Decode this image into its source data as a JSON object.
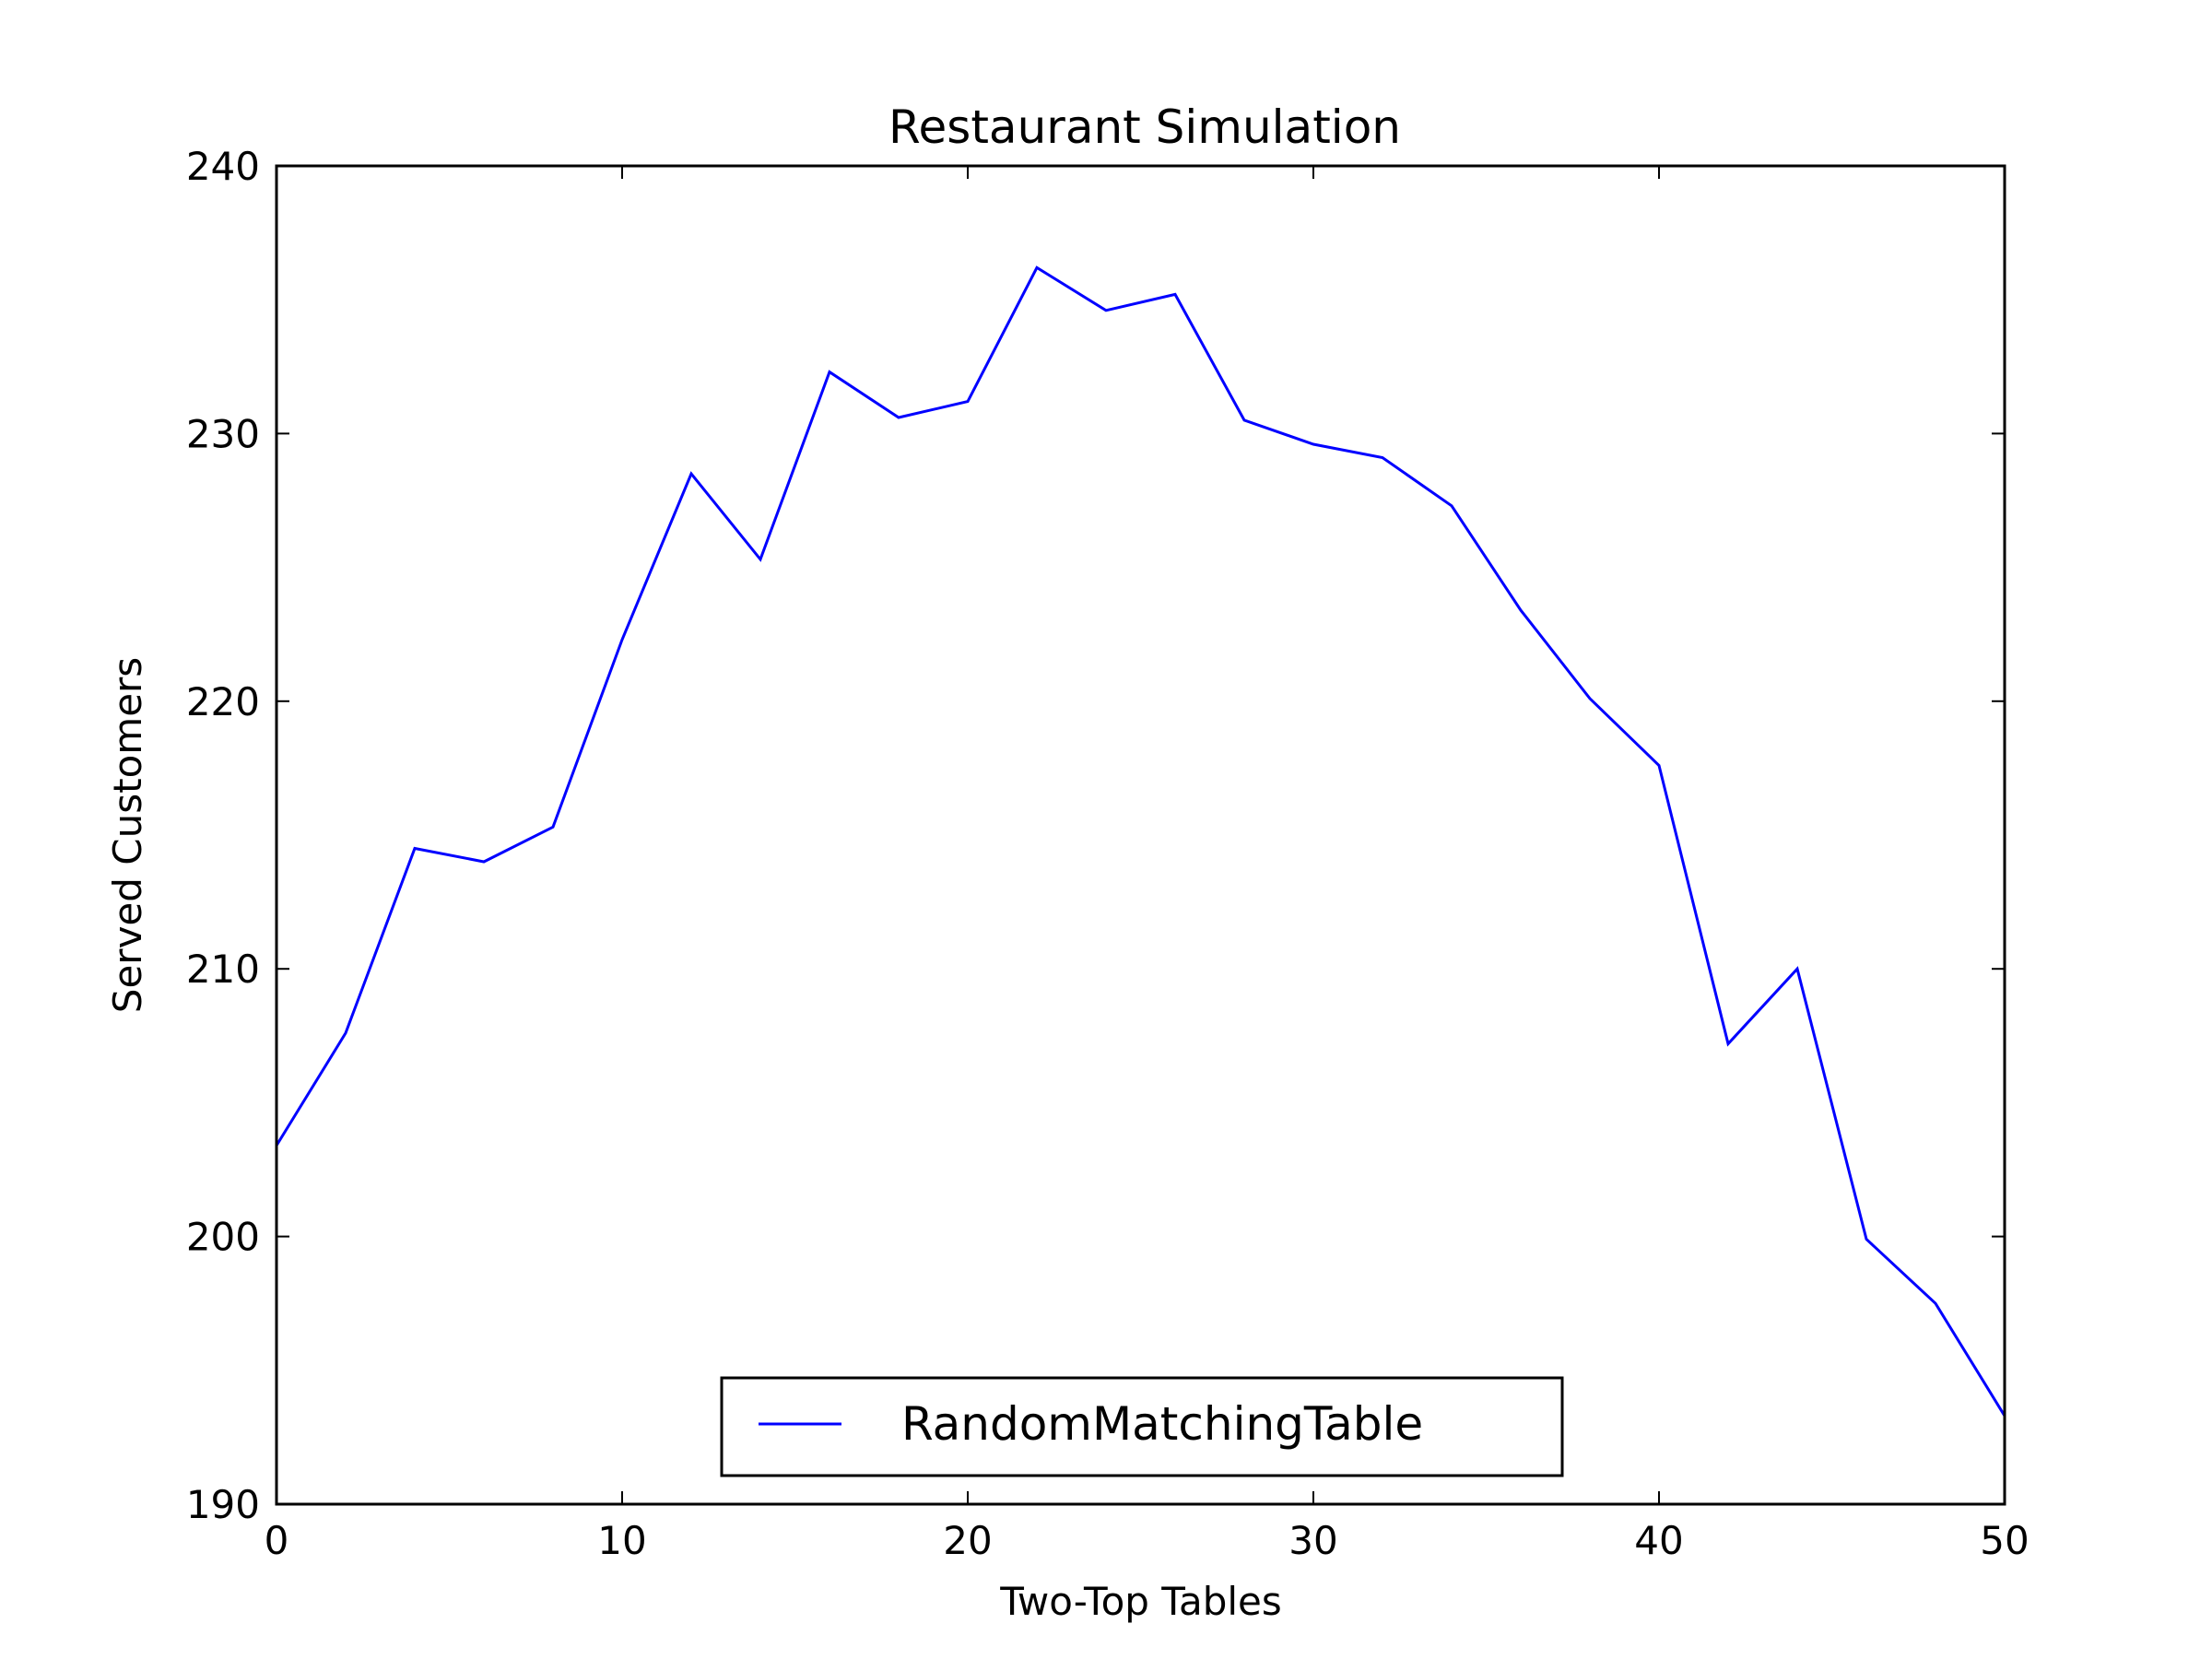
{
  "chart_data": {
    "type": "line",
    "title": "Restaurant Simulation",
    "xlabel": "Two-Top Tables",
    "ylabel": "Served Customers",
    "xlim": [
      0,
      50
    ],
    "ylim": [
      190,
      240
    ],
    "xticks": [
      0,
      10,
      20,
      30,
      40,
      50
    ],
    "yticks": [
      190,
      200,
      210,
      220,
      230,
      240
    ],
    "xtick_labels": [
      "0",
      "10",
      "20",
      "30",
      "40",
      "50"
    ],
    "ytick_labels": [
      "190",
      "200",
      "210",
      "220",
      "230",
      "240"
    ],
    "grid": false,
    "legend_position": "lower center",
    "series": [
      {
        "name": "RandomMatchingTable",
        "color": "#0000ff",
        "x": [
          0,
          2,
          4,
          6,
          8,
          10,
          12,
          14,
          16,
          18,
          20,
          22,
          24,
          26,
          28,
          30,
          32,
          34,
          36,
          38,
          40,
          42,
          44,
          46,
          48,
          50
        ],
        "y": [
          203.4,
          207.6,
          214.5,
          214.0,
          215.3,
          222.3,
          228.5,
          225.3,
          232.3,
          230.6,
          231.2,
          236.2,
          234.6,
          235.2,
          230.5,
          229.6,
          229.1,
          227.3,
          223.4,
          220.1,
          217.6,
          207.2,
          210.0,
          199.9,
          197.5,
          193.3
        ]
      }
    ]
  }
}
